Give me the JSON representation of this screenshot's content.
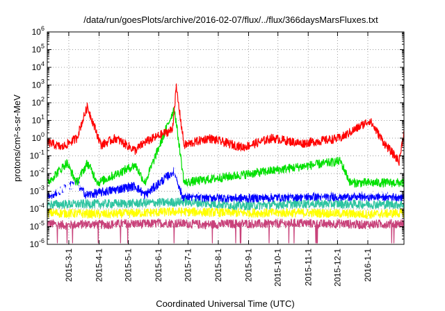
{
  "chart_data": {
    "type": "line",
    "title": "/data/run/goesPlots/archive/2016-02-07/flux/../flux/366daysMarsFluxes.txt",
    "xlabel": "Coordinated Universal Time (UTC)",
    "ylabel": "protons/cm²-s-sr-MeV",
    "ylim": [
      1e-06,
      1000000.0
    ],
    "yscale": "log",
    "xlim": [
      "2015-02-07",
      "2016-02-07"
    ],
    "grid": true,
    "y_ticks": [
      "10-6",
      "10-5",
      "10-4",
      "10-3",
      "10-2",
      "10-1",
      "100",
      "101",
      "102",
      "103",
      "104",
      "105",
      "106"
    ],
    "y_tick_base": "10",
    "y_tick_exps": [
      "-6",
      "-5",
      "-4",
      "-3",
      "-2",
      "-1",
      "0",
      "1",
      "2",
      "3",
      "4",
      "5",
      "6"
    ],
    "x_tick_labels": [
      "2015-3-1",
      "2015-4-1",
      "2015-5-1",
      "2015-6-1",
      "2015-7-1",
      "2015-8-1",
      "2015-9-1",
      "2015-10-1",
      "2015-11-1",
      "2015-12-1",
      "2016-1-1"
    ],
    "x_tick_dates": [
      "2015-03-01",
      "2015-04-01",
      "2015-05-01",
      "2015-06-01",
      "2015-07-01",
      "2015-08-01",
      "2015-09-01",
      "2015-10-01",
      "2015-11-01",
      "2015-12-01",
      "2016-01-01"
    ],
    "series": [
      {
        "color": "#c8427a",
        "level": 1.5e-05,
        "values": [
          [
            0,
            1.5e-05
          ],
          [
            20,
            1.2e-05
          ],
          [
            40,
            1.4e-05
          ],
          [
            60,
            1.3e-05
          ],
          [
            80,
            1.5e-05
          ],
          [
            100,
            1.4e-05
          ],
          [
            120,
            1.6e-05
          ],
          [
            140,
            1.5e-05
          ],
          [
            160,
            1.3e-05
          ],
          [
            180,
            1.4e-05
          ],
          [
            200,
            1.5e-05
          ],
          [
            220,
            1.4e-05
          ],
          [
            240,
            1.5e-05
          ],
          [
            260,
            1.6e-05
          ],
          [
            280,
            1.4e-05
          ],
          [
            300,
            1.5e-05
          ],
          [
            320,
            1.3e-05
          ],
          [
            340,
            1.4e-05
          ],
          [
            365,
            1.5e-05
          ]
        ]
      },
      {
        "color": "#ffff00",
        "level": 6e-05,
        "values": [
          [
            0,
            6e-05
          ],
          [
            60,
            5e-05
          ],
          [
            130,
            7e-05
          ],
          [
            200,
            6e-05
          ],
          [
            270,
            6e-05
          ],
          [
            330,
            5e-05
          ],
          [
            365,
            6e-05
          ]
        ]
      },
      {
        "color": "#2ec4a0",
        "level": 0.00018,
        "values": [
          [
            0,
            0.00018
          ],
          [
            80,
            0.0002
          ],
          [
            140,
            0.00025
          ],
          [
            200,
            0.00015
          ],
          [
            260,
            0.0002
          ],
          [
            365,
            0.00018
          ]
        ]
      },
      {
        "color": "#0000ff",
        "level": 0.0005,
        "values": [
          [
            0,
            0.0005
          ],
          [
            30,
            0.003
          ],
          [
            40,
            0.0006
          ],
          [
            90,
            0.002
          ],
          [
            100,
            0.0006
          ],
          [
            130,
            0.015
          ],
          [
            138,
            0.0005
          ],
          [
            200,
            0.0004
          ],
          [
            260,
            0.0005
          ],
          [
            365,
            0.0005
          ]
        ]
      },
      {
        "color": "#ffffff",
        "level": 0.001,
        "values": [
          [
            0,
            0.001
          ],
          [
            130,
            0.02
          ],
          [
            140,
            0.001
          ],
          [
            365,
            0.001
          ]
        ]
      },
      {
        "color": "#00e000",
        "level": 0.003,
        "values": [
          [
            0,
            0.003
          ],
          [
            20,
            0.04
          ],
          [
            30,
            0.003
          ],
          [
            41,
            0.04
          ],
          [
            52,
            0.003
          ],
          [
            90,
            0.03
          ],
          [
            100,
            0.003
          ],
          [
            130,
            50.0
          ],
          [
            140,
            0.003
          ],
          [
            300,
            0.05
          ],
          [
            310,
            0.003
          ],
          [
            365,
            0.003
          ]
        ]
      },
      {
        "color": "#ff0000",
        "level": 0.6,
        "values": [
          [
            0,
            0.6
          ],
          [
            15,
            0.3
          ],
          [
            30,
            1.0
          ],
          [
            41,
            60
          ],
          [
            55,
            0.4
          ],
          [
            70,
            1.0
          ],
          [
            90,
            0.2
          ],
          [
            100,
            0.6
          ],
          [
            128,
            3
          ],
          [
            132,
            700
          ],
          [
            140,
            0.4
          ],
          [
            165,
            1.0
          ],
          [
            200,
            0.3
          ],
          [
            230,
            1.0
          ],
          [
            260,
            0.5
          ],
          [
            300,
            1.0
          ],
          [
            330,
            10
          ],
          [
            345,
            0.5
          ],
          [
            360,
            0.05
          ],
          [
            365,
            2
          ]
        ]
      }
    ]
  }
}
